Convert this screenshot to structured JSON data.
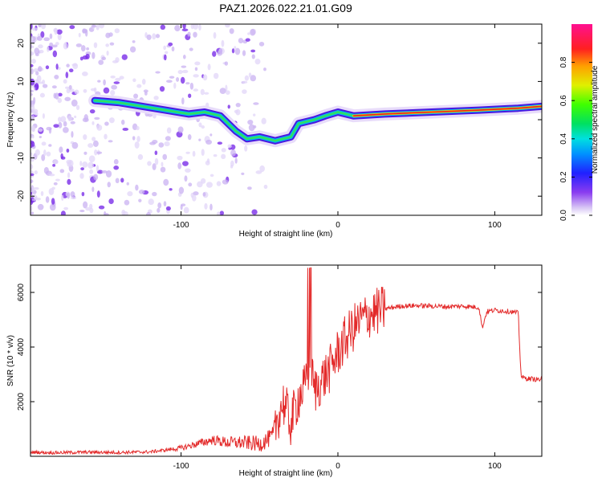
{
  "chart_data": [
    {
      "type": "heatmap",
      "title": "PAZ1.2026.022.21.01.G09",
      "xlabel": "Height of straight line (km)",
      "ylabel": "Frequency (Hz)",
      "xlim": [
        -196,
        130
      ],
      "ylim": [
        -25,
        25
      ],
      "xticks": [
        -100,
        0,
        100
      ],
      "xtick_labels": [
        "-100",
        "0",
        "100"
      ],
      "yticks": [
        -20,
        -10,
        0,
        10,
        20
      ],
      "ytick_labels": [
        "-20",
        "-10",
        "0",
        "10",
        "20"
      ],
      "colorbar": {
        "label": "Normalized spectral amplitude",
        "range": [
          0,
          1
        ],
        "ticks": [
          0.0,
          0.2,
          0.4,
          0.6,
          0.8
        ],
        "tick_labels": [
          "0.0",
          "0.2",
          "0.4",
          "0.6",
          "0.8"
        ]
      },
      "ridge_track": [
        {
          "x": -155,
          "f": 5
        },
        {
          "x": -140,
          "f": 4.5
        },
        {
          "x": -125,
          "f": 3.5
        },
        {
          "x": -110,
          "f": 2.5
        },
        {
          "x": -95,
          "f": 1.5
        },
        {
          "x": -85,
          "f": 2
        },
        {
          "x": -75,
          "f": 1
        },
        {
          "x": -65,
          "f": -3
        },
        {
          "x": -58,
          "f": -5
        },
        {
          "x": -50,
          "f": -4.5
        },
        {
          "x": -40,
          "f": -5.5
        },
        {
          "x": -30,
          "f": -4.5
        },
        {
          "x": -25,
          "f": -1
        },
        {
          "x": -15,
          "f": 0
        },
        {
          "x": -8,
          "f": 1
        },
        {
          "x": 0,
          "f": 2
        },
        {
          "x": 10,
          "f": 1
        },
        {
          "x": 30,
          "f": 1.5
        },
        {
          "x": 60,
          "f": 2
        },
        {
          "x": 90,
          "f": 2.5
        },
        {
          "x": 115,
          "f": 3
        },
        {
          "x": 130,
          "f": 3.5
        }
      ]
    },
    {
      "type": "line",
      "xlabel": "Height of straight line (km)",
      "ylabel": "SNR (10 * v/v)",
      "xlim": [
        -196,
        130
      ],
      "ylim": [
        0,
        7000
      ],
      "xticks": [
        -100,
        0,
        100
      ],
      "xtick_labels": [
        "-100",
        "0",
        "100"
      ],
      "yticks": [
        2000,
        4000,
        6000
      ],
      "ytick_labels": [
        "2000",
        "4000",
        "6000"
      ],
      "color": "#e32a2a",
      "series": [
        {
          "name": "SNR",
          "x": [
            -196,
            -180,
            -160,
            -140,
            -120,
            -100,
            -90,
            -80,
            -70,
            -60,
            -50,
            -42,
            -38,
            -35,
            -30,
            -25,
            -20,
            -18,
            -15,
            -10,
            -5,
            0,
            5,
            10,
            15,
            20,
            25,
            30,
            35,
            40,
            50,
            60,
            70,
            80,
            90,
            92,
            95,
            100,
            110,
            115,
            116,
            117,
            120,
            130
          ],
          "y": [
            150,
            130,
            150,
            140,
            160,
            300,
            450,
            600,
            500,
            500,
            450,
            700,
            1500,
            2000,
            1200,
            2200,
            2600,
            3500,
            2400,
            2800,
            3200,
            3800,
            4300,
            4700,
            5000,
            5200,
            5300,
            5400,
            5450,
            5500,
            5520,
            5500,
            5480,
            5500,
            5450,
            4700,
            5300,
            5350,
            5300,
            5250,
            3800,
            2900,
            2850,
            2800
          ]
        }
      ]
    }
  ]
}
